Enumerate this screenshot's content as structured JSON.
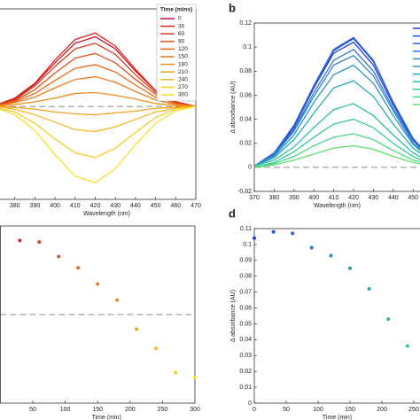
{
  "chart_data": [
    {
      "type": "line",
      "xlabel": "Wavelength (nm)",
      "legend_title": "Time (mins)",
      "legend": "upper right",
      "zero_line": true,
      "x": [
        370,
        380,
        390,
        400,
        410,
        420,
        430,
        440,
        450,
        460,
        470
      ],
      "xlim": [
        370,
        470
      ],
      "xticks": [
        380,
        390,
        400,
        410,
        420,
        430,
        440,
        450,
        460,
        470
      ],
      "ylim": [
        -0.1,
        0.105
      ],
      "series": [
        {
          "name": "0",
          "color": "#c8102e",
          "values": [
            0.001,
            0.008,
            0.024,
            0.047,
            0.068,
            0.075,
            0.062,
            0.038,
            0.017,
            0.005,
            0
          ]
        },
        {
          "name": "30",
          "color": "#d42a1e",
          "values": [
            0.001,
            0.009,
            0.025,
            0.05,
            0.072,
            0.079,
            0.065,
            0.04,
            0.017,
            0.005,
            0
          ]
        },
        {
          "name": "60",
          "color": "#dc3d1a",
          "values": [
            0.001,
            0.007,
            0.022,
            0.043,
            0.062,
            0.068,
            0.056,
            0.034,
            0.015,
            0.004,
            0
          ]
        },
        {
          "name": "90",
          "color": "#e25219",
          "values": [
            0.001,
            0.006,
            0.018,
            0.036,
            0.052,
            0.057,
            0.047,
            0.029,
            0.013,
            0.003,
            0
          ]
        },
        {
          "name": "120",
          "color": "#e8661a",
          "values": [
            0,
            0.005,
            0.014,
            0.028,
            0.041,
            0.045,
            0.037,
            0.023,
            0.01,
            0.003,
            0
          ]
        },
        {
          "name": "150",
          "color": "#ec7a1c",
          "values": [
            0,
            0.004,
            0.01,
            0.02,
            0.029,
            0.032,
            0.026,
            0.016,
            0.007,
            0.002,
            0
          ]
        },
        {
          "name": "180",
          "color": "#ef8e1f",
          "values": [
            0,
            0.002,
            0.005,
            0.009,
            0.014,
            0.015,
            0.012,
            0.008,
            0.003,
            0.001,
            0
          ]
        },
        {
          "name": "210",
          "color": "#f2a222",
          "values": [
            0,
            -0.001,
            -0.003,
            -0.006,
            -0.008,
            -0.009,
            -0.007,
            -0.005,
            -0.002,
            -0.001,
            0
          ]
        },
        {
          "name": "240",
          "color": "#f4b725",
          "values": [
            0,
            -0.003,
            -0.009,
            -0.017,
            -0.025,
            -0.027,
            -0.022,
            -0.014,
            -0.006,
            -0.002,
            0
          ]
        },
        {
          "name": "270",
          "color": "#f5cc28",
          "values": [
            -0.001,
            -0.006,
            -0.018,
            -0.035,
            -0.05,
            -0.055,
            -0.045,
            -0.028,
            -0.012,
            -0.003,
            0
          ]
        },
        {
          "name": "300",
          "color": "#f4e12b",
          "values": [
            -0.001,
            -0.009,
            -0.026,
            -0.052,
            -0.075,
            -0.082,
            -0.067,
            -0.041,
            -0.018,
            -0.005,
            0
          ]
        }
      ]
    },
    {
      "type": "line",
      "label": "b",
      "xlabel": "Wavelength (nm)",
      "ylabel": "Δ absorbance (AU)",
      "zero_line": true,
      "x": [
        370,
        380,
        390,
        400,
        410,
        420,
        430,
        440,
        450,
        460,
        470
      ],
      "xlim": [
        370,
        470
      ],
      "xticks": [
        370,
        380,
        390,
        400,
        410,
        420,
        430,
        440,
        450
      ],
      "ylim": [
        -0.02,
        0.12
      ],
      "yticks": [
        -0.02,
        0,
        0.02,
        0.04,
        0.06,
        0.08,
        0.1,
        0.12
      ],
      "series": [
        {
          "color": "#1f3fd6",
          "values": [
            0.001,
            0.011,
            0.033,
            0.066,
            0.095,
            0.104,
            0.085,
            0.052,
            0.023,
            0.006,
            0
          ]
        },
        {
          "color": "#2350d8",
          "values": [
            0.001,
            0.012,
            0.035,
            0.068,
            0.098,
            0.108,
            0.089,
            0.054,
            0.024,
            0.006,
            0
          ]
        },
        {
          "color": "#2a62d4",
          "values": [
            0.001,
            0.012,
            0.034,
            0.067,
            0.097,
            0.107,
            0.088,
            0.054,
            0.024,
            0.006,
            0
          ]
        },
        {
          "color": "#2f74cf",
          "values": [
            0.001,
            0.011,
            0.031,
            0.062,
            0.089,
            0.098,
            0.08,
            0.049,
            0.022,
            0.006,
            0
          ]
        },
        {
          "color": "#2f86c8",
          "values": [
            0.001,
            0.01,
            0.03,
            0.059,
            0.085,
            0.093,
            0.076,
            0.047,
            0.02,
            0.006,
            0
          ]
        },
        {
          "color": "#2d98bf",
          "values": [
            0.001,
            0.009,
            0.027,
            0.054,
            0.077,
            0.085,
            0.07,
            0.043,
            0.019,
            0.005,
            0
          ]
        },
        {
          "color": "#2aaab5",
          "values": [
            0.001,
            0.008,
            0.023,
            0.045,
            0.066,
            0.072,
            0.059,
            0.036,
            0.016,
            0.004,
            0
          ]
        },
        {
          "color": "#2cbba6",
          "values": [
            0.001,
            0.006,
            0.017,
            0.033,
            0.048,
            0.053,
            0.043,
            0.027,
            0.012,
            0.003,
            0
          ]
        },
        {
          "color": "#38c996",
          "values": [
            0,
            0.004,
            0.013,
            0.025,
            0.036,
            0.04,
            0.033,
            0.02,
            0.009,
            0.002,
            0
          ]
        },
        {
          "color": "#4cd585",
          "values": [
            0,
            0.003,
            0.009,
            0.018,
            0.025,
            0.028,
            0.023,
            0.014,
            0.006,
            0.002,
            0
          ]
        },
        {
          "color": "#62dd72",
          "values": [
            0,
            0.002,
            0.006,
            0.011,
            0.016,
            0.018,
            0.015,
            0.009,
            0.004,
            0.001,
            0
          ]
        }
      ]
    },
    {
      "type": "scatter",
      "xlabel": "Time (min)",
      "zero_line": true,
      "x": [
        30,
        60,
        90,
        120,
        150,
        180,
        210,
        240,
        270,
        300
      ],
      "values": [
        0.046,
        0.045,
        0.036,
        0.029,
        0.019,
        0.009,
        -0.009,
        -0.021,
        -0.036,
        -0.039
      ],
      "colors": [
        "#d42a1e",
        "#dc3d1a",
        "#e25219",
        "#e8661a",
        "#ec7a1c",
        "#ef8e1f",
        "#f2a222",
        "#f4b725",
        "#f5cc28",
        "#f4e12b"
      ],
      "xlim": [
        0,
        300
      ],
      "xticks": [
        50,
        100,
        150,
        200,
        250,
        300
      ],
      "ylim": [
        -0.055,
        0.055
      ]
    },
    {
      "type": "scatter",
      "label": "d",
      "xlabel": "Time (min)",
      "ylabel": "Δ absorbance (AU)",
      "x": [
        0,
        30,
        60,
        90,
        120,
        150,
        180,
        210,
        240
      ],
      "values": [
        0.104,
        0.108,
        0.107,
        0.098,
        0.093,
        0.085,
        0.072,
        0.053,
        0.036
      ],
      "colors": [
        "#1f3fd6",
        "#2350d8",
        "#2a62d4",
        "#2f74cf",
        "#2f86c8",
        "#2d98bf",
        "#2aaab5",
        "#2cbba6",
        "#38c996"
      ],
      "xlim": [
        0,
        300
      ],
      "xticks": [
        0,
        50,
        100,
        150,
        200,
        250
      ],
      "ylim": [
        0,
        0.11
      ],
      "yticks": [
        0,
        0.01,
        0.02,
        0.03,
        0.04,
        0.05,
        0.06,
        0.07,
        0.08,
        0.09,
        0.1,
        0.11
      ]
    }
  ]
}
